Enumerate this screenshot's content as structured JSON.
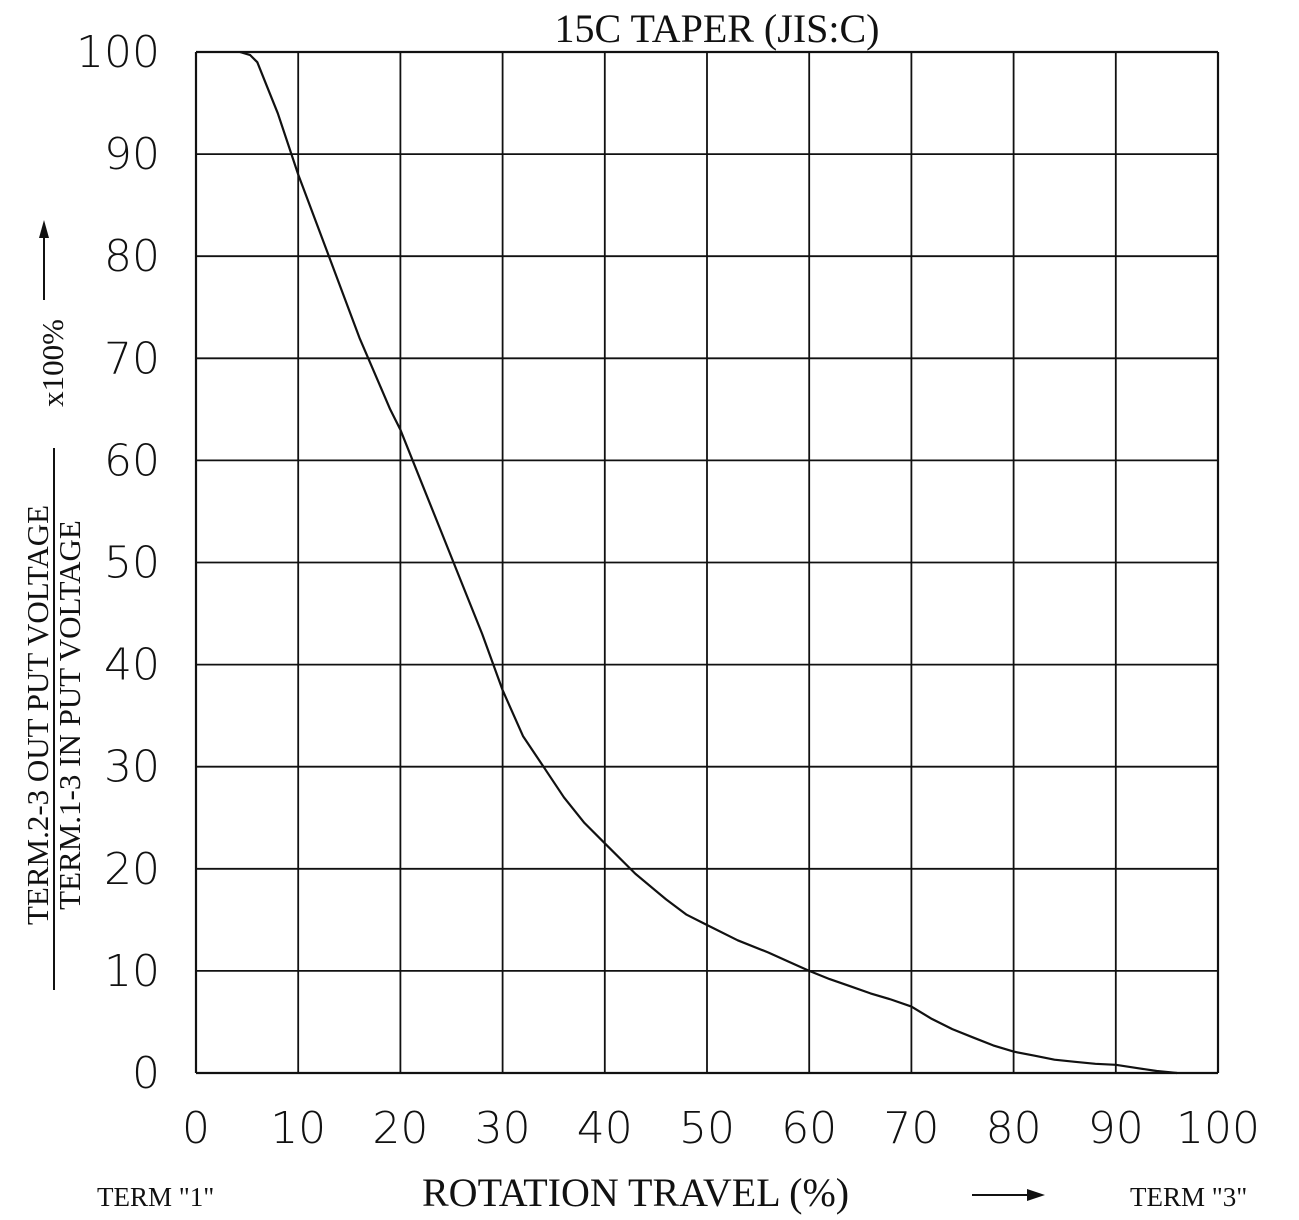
{
  "chart_data": {
    "type": "line",
    "title": "15C TAPER (JIS:C)",
    "xlabel": "ROTATION TRAVEL (%)",
    "ylabel_numerator": "TERM.2-3 OUT PUT VOLTAGE",
    "ylabel_denominator": "TERM.1-3 IN PUT VOLTAGE",
    "ylabel_multiplier": "x100%",
    "term_left": "TERM \"1\"",
    "term_right": "TERM \"3\"",
    "xlim": [
      0,
      100
    ],
    "ylim": [
      0,
      100
    ],
    "x_ticks": [
      "0",
      "10",
      "20",
      "30",
      "40",
      "50",
      "60",
      "70",
      "80",
      "90",
      "100"
    ],
    "y_ticks": [
      "0",
      "10",
      "20",
      "30",
      "40",
      "50",
      "60",
      "70",
      "80",
      "90",
      "100"
    ],
    "grid": true,
    "series": [
      {
        "x": [
          4.3,
          5.3,
          6,
          7,
          8,
          10,
          13,
          16,
          19,
          20,
          22,
          24,
          26,
          28,
          30,
          32,
          34,
          36,
          38,
          40,
          43,
          46,
          48,
          50,
          53,
          56,
          58,
          60,
          62,
          64,
          66,
          68,
          70,
          72,
          74,
          76,
          78,
          80,
          82,
          84,
          86,
          88,
          90,
          92,
          94,
          96
        ],
        "y": [
          100,
          99.7,
          99,
          96.5,
          94,
          88,
          80,
          72,
          65,
          63,
          58,
          53,
          48,
          43,
          37.5,
          33,
          30,
          27,
          24.5,
          22.5,
          19.5,
          17,
          15.5,
          14.5,
          13,
          11.8,
          10.9,
          10,
          9.2,
          8.5,
          7.8,
          7.2,
          6.5,
          5.3,
          4.3,
          3.5,
          2.7,
          2.1,
          1.7,
          1.3,
          1.1,
          0.9,
          0.8,
          0.5,
          0.2,
          0
        ]
      }
    ]
  }
}
